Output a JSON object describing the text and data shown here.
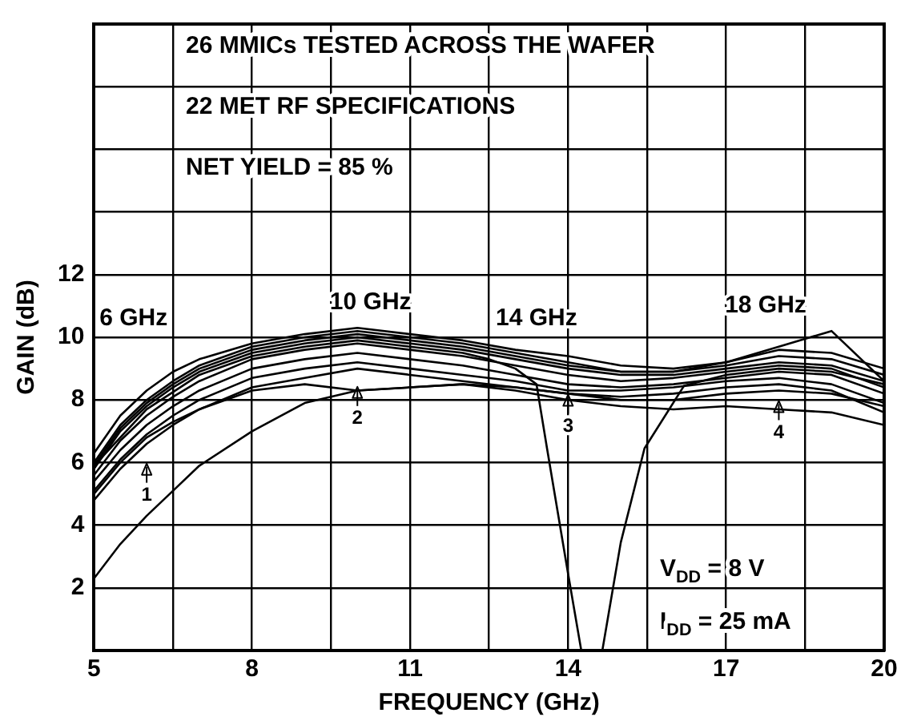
{
  "chart_data": {
    "type": "line",
    "xlabel": "FREQUENCY (GHz)",
    "ylabel": "GAIN (dB)",
    "x": [
      5,
      5.5,
      6,
      6.5,
      7,
      8,
      9,
      10,
      11,
      12,
      13,
      14,
      15,
      16,
      17,
      18,
      19,
      20
    ],
    "xlim": [
      5,
      20
    ],
    "xticks": [
      5,
      {
        "value": 6.5,
        "label": null
      },
      8,
      {
        "value": 9.5,
        "label": null
      },
      11,
      {
        "value": 12.5,
        "label": null
      },
      14,
      {
        "value": 15.5,
        "label": null
      },
      17,
      {
        "value": 18.5,
        "label": null
      },
      20
    ],
    "ylim": [
      0,
      20
    ],
    "yticks": [
      {
        "value": 0,
        "label": null
      },
      2,
      4,
      6,
      8,
      10,
      12,
      {
        "value": 14,
        "label": null
      },
      {
        "value": 16,
        "label": null
      },
      {
        "value": 18,
        "label": null
      },
      {
        "value": 20,
        "label": null
      }
    ],
    "grid": true,
    "legend": false,
    "marker": "none",
    "line_style": "solid",
    "series": [
      {
        "color": "#000000",
        "values": [
          6.3,
          7.5,
          8.3,
          8.9,
          9.3,
          9.8,
          10.1,
          10.3,
          10.1,
          9.9,
          9.6,
          9.4,
          9.1,
          9.0,
          9.2,
          9.6,
          9.5,
          9.0
        ]
      },
      {
        "color": "#000000",
        "values": [
          6.0,
          7.2,
          8.0,
          8.6,
          9.1,
          9.7,
          10.0,
          10.2,
          10.0,
          9.8,
          9.5,
          9.2,
          8.9,
          8.9,
          9.1,
          9.4,
          9.3,
          8.8
        ]
      },
      {
        "color": "#000000",
        "values": [
          5.8,
          7.0,
          7.8,
          8.4,
          8.9,
          9.5,
          9.8,
          10.0,
          9.8,
          9.6,
          9.3,
          9.0,
          8.8,
          8.8,
          9.0,
          9.2,
          9.1,
          8.6
        ]
      },
      {
        "color": "#000000",
        "values": [
          5.6,
          6.7,
          7.5,
          8.1,
          8.6,
          9.3,
          9.6,
          9.8,
          9.6,
          9.4,
          9.1,
          8.8,
          8.6,
          8.7,
          8.9,
          9.1,
          9.0,
          8.4
        ]
      },
      {
        "color": "#000000",
        "values": [
          5.4,
          6.4,
          7.2,
          7.8,
          8.3,
          9.0,
          9.3,
          9.5,
          9.3,
          9.1,
          8.8,
          8.5,
          8.4,
          8.5,
          8.7,
          8.9,
          8.8,
          8.2
        ]
      },
      {
        "color": "#000000",
        "values": [
          5.1,
          6.1,
          6.9,
          7.5,
          8.0,
          8.7,
          9.0,
          9.2,
          9.0,
          8.8,
          8.6,
          8.3,
          8.3,
          8.4,
          8.6,
          8.7,
          8.5,
          7.9
        ]
      },
      {
        "color": "#000000",
        "values": [
          4.8,
          5.8,
          6.6,
          7.2,
          7.7,
          8.4,
          8.7,
          9.0,
          8.8,
          8.6,
          8.4,
          8.2,
          8.1,
          8.2,
          8.4,
          8.5,
          8.3,
          7.6
        ]
      },
      {
        "color": "#000000",
        "values": [
          5.0,
          6.0,
          6.8,
          7.3,
          7.7,
          8.3,
          8.5,
          8.3,
          8.4,
          8.5,
          8.3,
          8.0,
          7.8,
          7.7,
          7.8,
          7.7,
          7.6,
          7.2
        ]
      },
      {
        "color": "#000000",
        "values": [
          2.3,
          3.4,
          4.3,
          5.1,
          5.9,
          7.0,
          7.9,
          8.3,
          8.4,
          8.5,
          8.4,
          8.2,
          8.0,
          8.0,
          8.2,
          8.3,
          8.2,
          7.8
        ]
      },
      {
        "color": "#000000",
        "values": [
          5.9,
          7.1,
          7.9,
          8.5,
          9.0,
          9.6,
          9.9,
          10.1,
          9.9,
          9.7,
          9.4,
          9.1,
          8.9,
          8.9,
          9.2,
          9.7,
          10.2,
          8.6
        ]
      },
      {
        "color": "#000000",
        "x": [
          5,
          6,
          7,
          8,
          9,
          10,
          11,
          12,
          12.5,
          13,
          13.4,
          13.6,
          14,
          14.25,
          14.45,
          14.65,
          15,
          15.45,
          16.2,
          17,
          18,
          19,
          20
        ],
        "values": [
          5.9,
          7.7,
          8.8,
          9.4,
          9.7,
          9.9,
          9.7,
          9.5,
          9.3,
          9.0,
          8.5,
          6.45,
          2.45,
          0,
          null,
          0,
          3.45,
          6.45,
          8.45,
          8.8,
          9.0,
          8.9,
          8.5
        ]
      }
    ],
    "annotations": [
      "26 MMICs TESTED ACROSS THE WAFER",
      "22 MET RF SPECIFICATIONS",
      "NET YIELD = 85 %",
      "V$_{DD}$ = 8 V",
      "I$_{DD}$ = 25 mA",
      "6 GHz",
      "10 GHz",
      "14 GHz",
      "18 GHz",
      "1",
      "2",
      "3",
      "4"
    ]
  }
}
